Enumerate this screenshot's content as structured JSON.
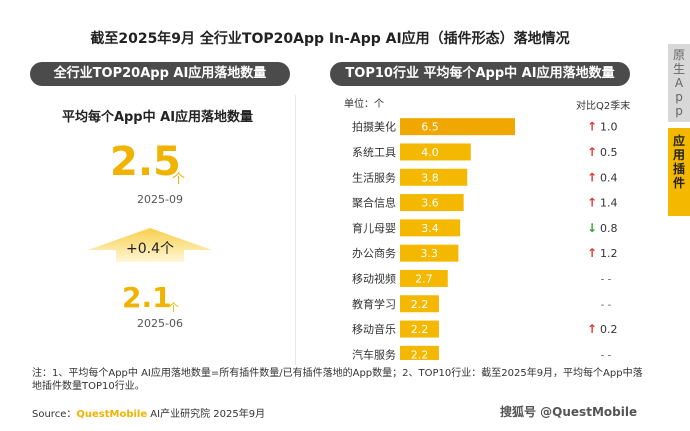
{
  "title": "截至2025年9月 全行业TOP20App In-App AI应用（插件形态）落地情况",
  "left_panel": {
    "header": "全行业TOP20App AI应用落地数量",
    "subtitle": "平均每个App中 AI应用落地数量",
    "current_value": "2.5",
    "current_unit": "个",
    "current_date": "2025-09",
    "change": "+0.4个",
    "previous_value": "2.1",
    "previous_unit": "个",
    "previous_date": "2025-06"
  },
  "right_panel": {
    "header": "TOP10行业 平均每个App中 AI应用落地数量",
    "unit_label": "单位：个",
    "compare_label": "对比Q2季末"
  },
  "chart_data": {
    "type": "bar",
    "orientation": "horizontal",
    "categories": [
      "拍摄美化",
      "系统工具",
      "生活服务",
      "聚合信息",
      "育儿母婴",
      "办公商务",
      "移动视频",
      "教育学习",
      "移动音乐",
      "汽车服务"
    ],
    "values": [
      6.5,
      4.0,
      3.8,
      3.6,
      3.4,
      3.3,
      2.7,
      2.2,
      2.2,
      2.2
    ],
    "value_labels": [
      "6.5",
      "4.0",
      "3.8",
      "3.6",
      "3.4",
      "3.3",
      "2.7",
      "2.2",
      "2.2",
      "2.2"
    ],
    "changes": [
      {
        "direction": "up",
        "text": "1.0"
      },
      {
        "direction": "up",
        "text": "0.5"
      },
      {
        "direction": "up",
        "text": "0.4"
      },
      {
        "direction": "up",
        "text": "1.4"
      },
      {
        "direction": "down",
        "text": "0.8"
      },
      {
        "direction": "up",
        "text": "1.2"
      },
      {
        "direction": "none",
        "text": "- -"
      },
      {
        "direction": "none",
        "text": "- -"
      },
      {
        "direction": "up",
        "text": "0.2"
      },
      {
        "direction": "none",
        "text": "- -"
      }
    ],
    "xlim": [
      0,
      6.5
    ],
    "colors": {
      "bar": "#f5b800",
      "bar_first": "#f0a800",
      "up": "#e23b2f",
      "down": "#3aa33a"
    }
  },
  "note": "注：1、平均每个App中 AI应用落地数量=所有插件数量/已有插件落地的App数量；2、TOP10行业：截至2025年9月，平均每个App中落地插件数量TOP10行业。",
  "source": {
    "prefix": "Source：",
    "brand": "QuestMobile",
    "suffix": " AI产业研究院 2025年9月"
  },
  "watermark": "搜狐号 @QuestMobile",
  "side_tabs": [
    "原生App",
    "应用插件"
  ]
}
